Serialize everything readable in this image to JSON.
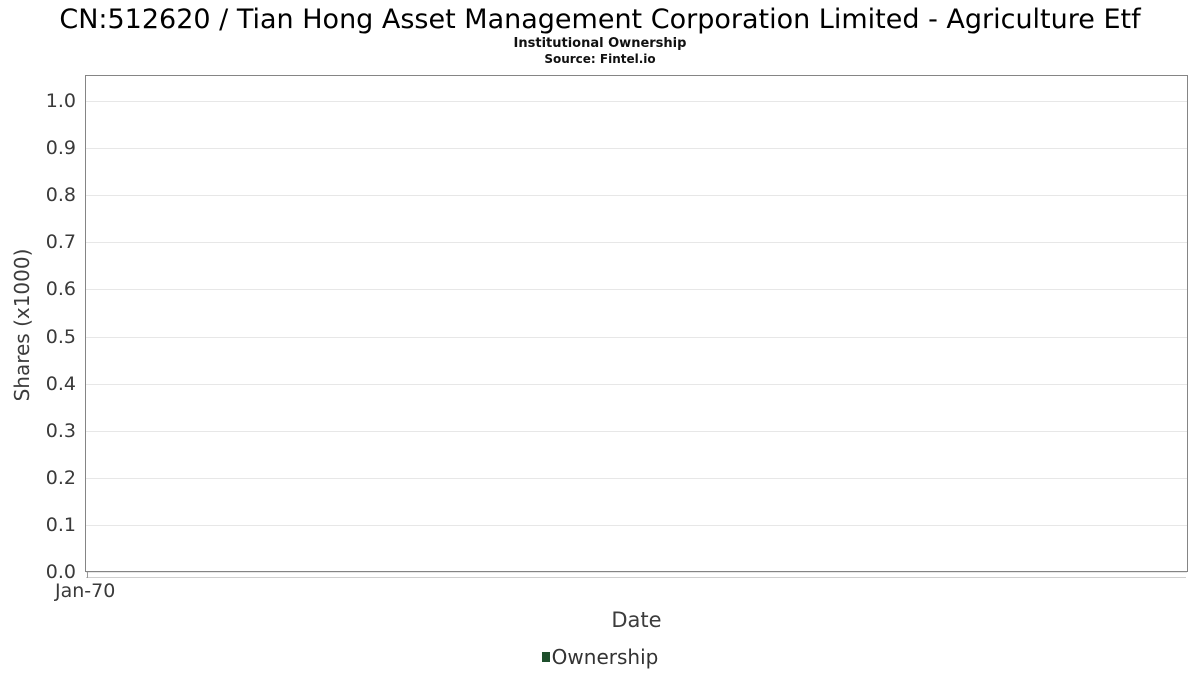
{
  "chart_data": {
    "type": "bar",
    "title": "CN:512620 / Tian Hong Asset Management Corporation Limited - Agriculture Etf",
    "subtitle": "Institutional Ownership",
    "source": "Source: Fintel.io",
    "xlabel": "Date",
    "ylabel": "Shares (x1000)",
    "x_ticks": [
      "Jan-70"
    ],
    "y_ticks": [
      "1.0",
      "0.9",
      "0.8",
      "0.7",
      "0.6",
      "0.5",
      "0.4",
      "0.3",
      "0.2",
      "0.1",
      "0.0"
    ],
    "ylim": [
      0.0,
      1.055
    ],
    "grid": true,
    "legend_position": "bottom",
    "series": [
      {
        "name": "Ownership",
        "color": "#1e4f2c",
        "x": [],
        "values": []
      }
    ]
  },
  "colors": {
    "legend_swatch": "#1e4f2c",
    "plot_border": "#858585",
    "gridline": "#e7e7e7",
    "tick_text": "#3a3a3a"
  },
  "legend": {
    "label": "Ownership"
  }
}
